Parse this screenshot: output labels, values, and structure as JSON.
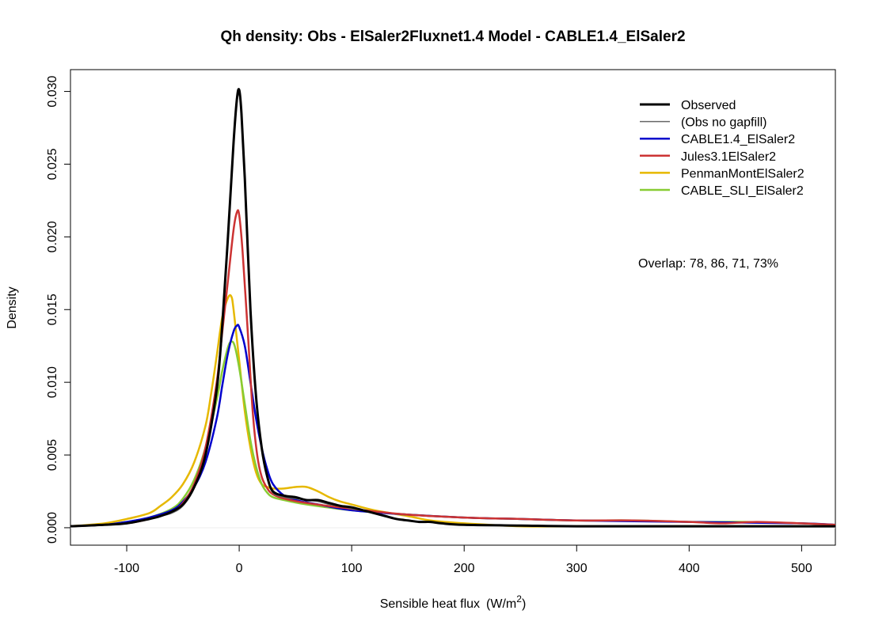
{
  "chart_data": {
    "type": "line",
    "title": "Qh density:   Obs - ElSaler2Fluxnet1.4   Model - CABLE1.4_ElSaler2",
    "xlabel": "Sensible heat flux",
    "xlabel_unit_prefix": "(W/m",
    "xlabel_unit_exponent": "2",
    "xlabel_unit_suffix": ")",
    "ylabel": "Density",
    "xlim": [
      -150,
      530
    ],
    "ylim": [
      -0.0012,
      0.0315
    ],
    "x_ticks": [
      -100,
      0,
      100,
      200,
      300,
      400,
      500
    ],
    "x_tick_labels": [
      "-100",
      "0",
      "100",
      "200",
      "300",
      "400",
      "500"
    ],
    "y_ticks": [
      0.0,
      0.005,
      0.01,
      0.015,
      0.02,
      0.025,
      0.03
    ],
    "y_tick_labels": [
      "0.000",
      "0.005",
      "0.010",
      "0.015",
      "0.020",
      "0.025",
      "0.030"
    ],
    "legend_position": "top-right",
    "grid": false,
    "annotation": "Overlap: 78, 86, 71, 73%",
    "series": [
      {
        "name": "Observed",
        "color": "#000000",
        "points": [
          [
            -150,
            0.0001
          ],
          [
            -120,
            0.0002
          ],
          [
            -100,
            0.0003
          ],
          [
            -80,
            0.0006
          ],
          [
            -70,
            0.0008
          ],
          [
            -60,
            0.0011
          ],
          [
            -50,
            0.0016
          ],
          [
            -40,
            0.0028
          ],
          [
            -30,
            0.005
          ],
          [
            -20,
            0.0095
          ],
          [
            -15,
            0.014
          ],
          [
            -10,
            0.02
          ],
          [
            -5,
            0.0265
          ],
          [
            -2,
            0.0295
          ],
          [
            0,
            0.0301
          ],
          [
            2,
            0.0285
          ],
          [
            5,
            0.024
          ],
          [
            10,
            0.015
          ],
          [
            15,
            0.009
          ],
          [
            20,
            0.0055
          ],
          [
            25,
            0.0035
          ],
          [
            30,
            0.0025
          ],
          [
            40,
            0.0022
          ],
          [
            50,
            0.0021
          ],
          [
            60,
            0.0019
          ],
          [
            70,
            0.0019
          ],
          [
            80,
            0.0017
          ],
          [
            90,
            0.0015
          ],
          [
            100,
            0.0014
          ],
          [
            110,
            0.0012
          ],
          [
            120,
            0.001
          ],
          [
            130,
            0.0008
          ],
          [
            140,
            0.0006
          ],
          [
            150,
            0.0005
          ],
          [
            160,
            0.0004
          ],
          [
            170,
            0.0004
          ],
          [
            180,
            0.0003
          ],
          [
            200,
            0.0002
          ],
          [
            250,
            0.00015
          ],
          [
            300,
            0.0001
          ],
          [
            400,
            0.0001
          ],
          [
            530,
            0.0001
          ]
        ]
      },
      {
        "name": "(Obs no gapfill)",
        "color": "#666666",
        "points": [
          [
            -150,
            0.0001
          ],
          [
            -120,
            0.0002
          ],
          [
            -100,
            0.0003
          ],
          [
            -80,
            0.0006
          ],
          [
            -70,
            0.0008
          ],
          [
            -60,
            0.001
          ],
          [
            -50,
            0.0015
          ],
          [
            -40,
            0.0027
          ],
          [
            -30,
            0.0049
          ],
          [
            -20,
            0.0093
          ],
          [
            -15,
            0.0138
          ],
          [
            -10,
            0.0198
          ],
          [
            -5,
            0.0262
          ],
          [
            -2,
            0.0292
          ],
          [
            0,
            0.0298
          ],
          [
            2,
            0.0282
          ],
          [
            5,
            0.0238
          ],
          [
            10,
            0.0148
          ],
          [
            15,
            0.0088
          ],
          [
            20,
            0.0054
          ],
          [
            25,
            0.0034
          ],
          [
            30,
            0.0024
          ],
          [
            40,
            0.0021
          ],
          [
            50,
            0.002
          ],
          [
            60,
            0.0019
          ],
          [
            70,
            0.0018
          ],
          [
            80,
            0.0016
          ],
          [
            90,
            0.0015
          ],
          [
            100,
            0.0013
          ],
          [
            110,
            0.0012
          ],
          [
            120,
            0.001
          ],
          [
            130,
            0.0008
          ],
          [
            140,
            0.0006
          ],
          [
            150,
            0.0005
          ],
          [
            160,
            0.0004
          ],
          [
            170,
            0.0004
          ],
          [
            180,
            0.0003
          ],
          [
            200,
            0.0002
          ],
          [
            250,
            0.00015
          ],
          [
            300,
            0.0001
          ],
          [
            400,
            0.0001
          ],
          [
            530,
            0.0001
          ]
        ]
      },
      {
        "name": "CABLE1.4_ElSaler2",
        "color": "#0000cc",
        "points": [
          [
            -150,
            0.0001
          ],
          [
            -120,
            0.0002
          ],
          [
            -100,
            0.0004
          ],
          [
            -80,
            0.0007
          ],
          [
            -60,
            0.0012
          ],
          [
            -50,
            0.0018
          ],
          [
            -40,
            0.0028
          ],
          [
            -30,
            0.0045
          ],
          [
            -20,
            0.0075
          ],
          [
            -15,
            0.0098
          ],
          [
            -10,
            0.012
          ],
          [
            -5,
            0.0135
          ],
          [
            -2,
            0.0139
          ],
          [
            0,
            0.0138
          ],
          [
            5,
            0.0125
          ],
          [
            10,
            0.01
          ],
          [
            15,
            0.0075
          ],
          [
            20,
            0.0055
          ],
          [
            25,
            0.004
          ],
          [
            30,
            0.003
          ],
          [
            40,
            0.0022
          ],
          [
            50,
            0.0019
          ],
          [
            70,
            0.0016
          ],
          [
            100,
            0.0012
          ],
          [
            150,
            0.0009
          ],
          [
            200,
            0.0007
          ],
          [
            250,
            0.0006
          ],
          [
            300,
            0.0005
          ],
          [
            400,
            0.0004
          ],
          [
            500,
            0.0003
          ],
          [
            530,
            0.0002
          ]
        ]
      },
      {
        "name": "Jules3.1ElSaler2",
        "color": "#cc3333",
        "points": [
          [
            -150,
            0.0001
          ],
          [
            -120,
            0.0002
          ],
          [
            -100,
            0.0003
          ],
          [
            -80,
            0.0006
          ],
          [
            -60,
            0.0011
          ],
          [
            -50,
            0.0017
          ],
          [
            -40,
            0.003
          ],
          [
            -30,
            0.0055
          ],
          [
            -20,
            0.01
          ],
          [
            -15,
            0.0135
          ],
          [
            -10,
            0.017
          ],
          [
            -5,
            0.0205
          ],
          [
            -2,
            0.0217
          ],
          [
            0,
            0.0215
          ],
          [
            3,
            0.019
          ],
          [
            8,
            0.013
          ],
          [
            12,
            0.008
          ],
          [
            16,
            0.005
          ],
          [
            20,
            0.0035
          ],
          [
            25,
            0.0027
          ],
          [
            30,
            0.0023
          ],
          [
            40,
            0.002
          ],
          [
            60,
            0.0017
          ],
          [
            100,
            0.0013
          ],
          [
            150,
            0.0009
          ],
          [
            200,
            0.0007
          ],
          [
            250,
            0.0006
          ],
          [
            300,
            0.0005
          ],
          [
            350,
            0.0005
          ],
          [
            400,
            0.0004
          ],
          [
            430,
            0.0003
          ],
          [
            460,
            0.0004
          ],
          [
            500,
            0.0003
          ],
          [
            530,
            0.0002
          ]
        ]
      },
      {
        "name": "PenmanMontElSaler2",
        "color": "#e6b800",
        "points": [
          [
            -150,
            0.0001
          ],
          [
            -120,
            0.0003
          ],
          [
            -100,
            0.0006
          ],
          [
            -80,
            0.001
          ],
          [
            -70,
            0.0015
          ],
          [
            -60,
            0.0021
          ],
          [
            -50,
            0.003
          ],
          [
            -40,
            0.0045
          ],
          [
            -30,
            0.007
          ],
          [
            -25,
            0.0092
          ],
          [
            -20,
            0.0118
          ],
          [
            -15,
            0.0145
          ],
          [
            -10,
            0.0158
          ],
          [
            -7,
            0.0159
          ],
          [
            -5,
            0.015
          ],
          [
            0,
            0.0115
          ],
          [
            5,
            0.008
          ],
          [
            10,
            0.0055
          ],
          [
            15,
            0.0038
          ],
          [
            20,
            0.003
          ],
          [
            25,
            0.0028
          ],
          [
            30,
            0.0027
          ],
          [
            40,
            0.0027
          ],
          [
            50,
            0.0028
          ],
          [
            60,
            0.0028
          ],
          [
            70,
            0.0025
          ],
          [
            80,
            0.0021
          ],
          [
            90,
            0.0018
          ],
          [
            100,
            0.0016
          ],
          [
            120,
            0.0012
          ],
          [
            150,
            0.0008
          ],
          [
            170,
            0.0005
          ],
          [
            200,
            0.0003
          ],
          [
            250,
            0.0001
          ],
          [
            300,
            0.0001
          ],
          [
            400,
            0.0001
          ],
          [
            530,
            0.0001
          ]
        ]
      },
      {
        "name": "CABLE_SLI_ElSaler2",
        "color": "#88cc33",
        "points": [
          [
            -150,
            0.0001
          ],
          [
            -120,
            0.0002
          ],
          [
            -100,
            0.0004
          ],
          [
            -80,
            0.0007
          ],
          [
            -60,
            0.0013
          ],
          [
            -50,
            0.002
          ],
          [
            -40,
            0.0033
          ],
          [
            -30,
            0.0055
          ],
          [
            -20,
            0.0088
          ],
          [
            -15,
            0.0108
          ],
          [
            -10,
            0.0124
          ],
          [
            -7,
            0.0128
          ],
          [
            -4,
            0.0125
          ],
          [
            0,
            0.011
          ],
          [
            5,
            0.0085
          ],
          [
            10,
            0.006
          ],
          [
            15,
            0.0042
          ],
          [
            20,
            0.003
          ],
          [
            25,
            0.0024
          ],
          [
            30,
            0.0021
          ],
          [
            40,
            0.0019
          ],
          [
            60,
            0.0016
          ],
          [
            100,
            0.0012
          ],
          [
            150,
            0.0009
          ],
          [
            200,
            0.0007
          ],
          [
            250,
            0.0006
          ],
          [
            300,
            0.0005
          ],
          [
            350,
            0.0005
          ],
          [
            400,
            0.0004
          ],
          [
            450,
            0.0004
          ],
          [
            500,
            0.0003
          ],
          [
            530,
            0.0002
          ]
        ]
      }
    ]
  }
}
